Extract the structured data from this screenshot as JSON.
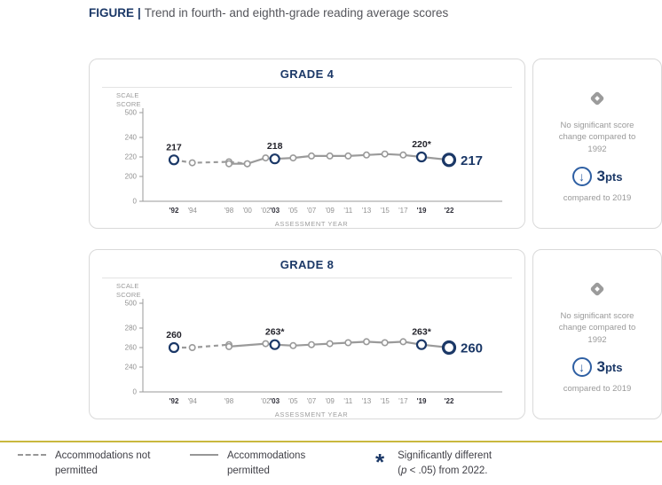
{
  "figure": {
    "label": "FIGURE",
    "separator": "|",
    "title": "Trend in fourth- and eighth-grade reading average scores"
  },
  "colors": {
    "navy": "#1b3867",
    "line_gray": "#9a9a9a",
    "arrow_blue": "#2e5fa3",
    "gold_rule": "#c9b83e"
  },
  "glyphs": {
    "down_arrow": "↓"
  },
  "chart_data": [
    {
      "type": "line",
      "title": "GRADE 4",
      "xlabel": "ASSESSMENT YEAR",
      "ylabel": "SCALE SCORE",
      "y_tick_labels": [
        "500",
        "240",
        "220",
        "200",
        "0"
      ],
      "data_range": [
        200,
        240
      ],
      "x_years": [
        1992,
        1994,
        1998,
        2000,
        2002,
        2003,
        2005,
        2007,
        2009,
        2011,
        2013,
        2015,
        2017,
        2019,
        2022
      ],
      "x_tick_labels": [
        "'92",
        "'94",
        "'98",
        "'00",
        "'02",
        "'03",
        "'05",
        "'07",
        "'09",
        "'11",
        "'13",
        "'15",
        "'17",
        "'19",
        "'22"
      ],
      "bold_years": [
        1992,
        2003,
        2019,
        2022
      ],
      "legend_position": "none",
      "grid": false,
      "series": [
        {
          "name": "Accommodations not permitted",
          "style": "dashed",
          "points": [
            {
              "year": 1992,
              "value": 217
            },
            {
              "year": 1994,
              "value": 214
            },
            {
              "year": 1998,
              "value": 215
            },
            {
              "year": 2000,
              "value": 213
            }
          ]
        },
        {
          "name": "Accommodations permitted",
          "style": "solid",
          "points": [
            {
              "year": 1998,
              "value": 213
            },
            {
              "year": 2000,
              "value": 213
            },
            {
              "year": 2002,
              "value": 219
            },
            {
              "year": 2003,
              "value": 218
            },
            {
              "year": 2005,
              "value": 219
            },
            {
              "year": 2007,
              "value": 221
            },
            {
              "year": 2009,
              "value": 221
            },
            {
              "year": 2011,
              "value": 221
            },
            {
              "year": 2013,
              "value": 222
            },
            {
              "year": 2015,
              "value": 223
            },
            {
              "year": 2017,
              "value": 222
            },
            {
              "year": 2019,
              "value": 220
            },
            {
              "year": 2022,
              "value": 217
            }
          ]
        }
      ],
      "annotations": [
        {
          "year": 1992,
          "value": 217,
          "label": "217",
          "emphasis": "key"
        },
        {
          "year": 2003,
          "value": 218,
          "label": "218",
          "emphasis": "key"
        },
        {
          "year": 2019,
          "value": 220,
          "label": "220*",
          "emphasis": "key"
        },
        {
          "year": 2022,
          "value": 217,
          "label": "217",
          "emphasis": "end"
        }
      ]
    },
    {
      "type": "line",
      "title": "GRADE 8",
      "xlabel": "ASSESSMENT YEAR",
      "ylabel": "SCALE SCORE",
      "y_tick_labels": [
        "500",
        "280",
        "260",
        "240",
        "0"
      ],
      "data_range": [
        240,
        280
      ],
      "x_years": [
        1992,
        1994,
        1998,
        2002,
        2003,
        2005,
        2007,
        2009,
        2011,
        2013,
        2015,
        2017,
        2019,
        2022
      ],
      "x_tick_labels": [
        "'92",
        "'94",
        "'98",
        "'02",
        "'03",
        "'05",
        "'07",
        "'09",
        "'11",
        "'13",
        "'15",
        "'17",
        "'19",
        "'22"
      ],
      "bold_years": [
        1992,
        2003,
        2019,
        2022
      ],
      "legend_position": "none",
      "grid": false,
      "series": [
        {
          "name": "Accommodations not permitted",
          "style": "dashed",
          "points": [
            {
              "year": 1992,
              "value": 260
            },
            {
              "year": 1994,
              "value": 260
            },
            {
              "year": 1998,
              "value": 263
            }
          ]
        },
        {
          "name": "Accommodations permitted",
          "style": "solid",
          "points": [
            {
              "year": 1998,
              "value": 261
            },
            {
              "year": 2002,
              "value": 264
            },
            {
              "year": 2003,
              "value": 263
            },
            {
              "year": 2005,
              "value": 262
            },
            {
              "year": 2007,
              "value": 263
            },
            {
              "year": 2009,
              "value": 264
            },
            {
              "year": 2011,
              "value": 265
            },
            {
              "year": 2013,
              "value": 266
            },
            {
              "year": 2015,
              "value": 265
            },
            {
              "year": 2017,
              "value": 266
            },
            {
              "year": 2019,
              "value": 263
            },
            {
              "year": 2022,
              "value": 260
            }
          ]
        }
      ],
      "annotations": [
        {
          "year": 1992,
          "value": 260,
          "label": "260",
          "emphasis": "key"
        },
        {
          "year": 2003,
          "value": 263,
          "label": "263*",
          "emphasis": "key"
        },
        {
          "year": 2019,
          "value": 263,
          "label": "263*",
          "emphasis": "key"
        },
        {
          "year": 2022,
          "value": 260,
          "label": "260",
          "emphasis": "end"
        }
      ]
    }
  ],
  "info_cards": [
    {
      "no_change_text": "No significant score change compared to 1992",
      "points_value": "3",
      "points_unit": "pts",
      "compare_text": "compared to 2019"
    },
    {
      "no_change_text": "No significant score change compared to 1992",
      "points_value": "3",
      "points_unit": "pts",
      "compare_text": "compared to 2019"
    }
  ],
  "legend": {
    "dashed_label": "Accommodations not permitted",
    "solid_label": "Accommodations permitted",
    "asterisk": "*",
    "sig_line1": "Significantly different",
    "sig_open": "(",
    "sig_p": "p",
    "sig_rest": " < .05) from 2022."
  }
}
